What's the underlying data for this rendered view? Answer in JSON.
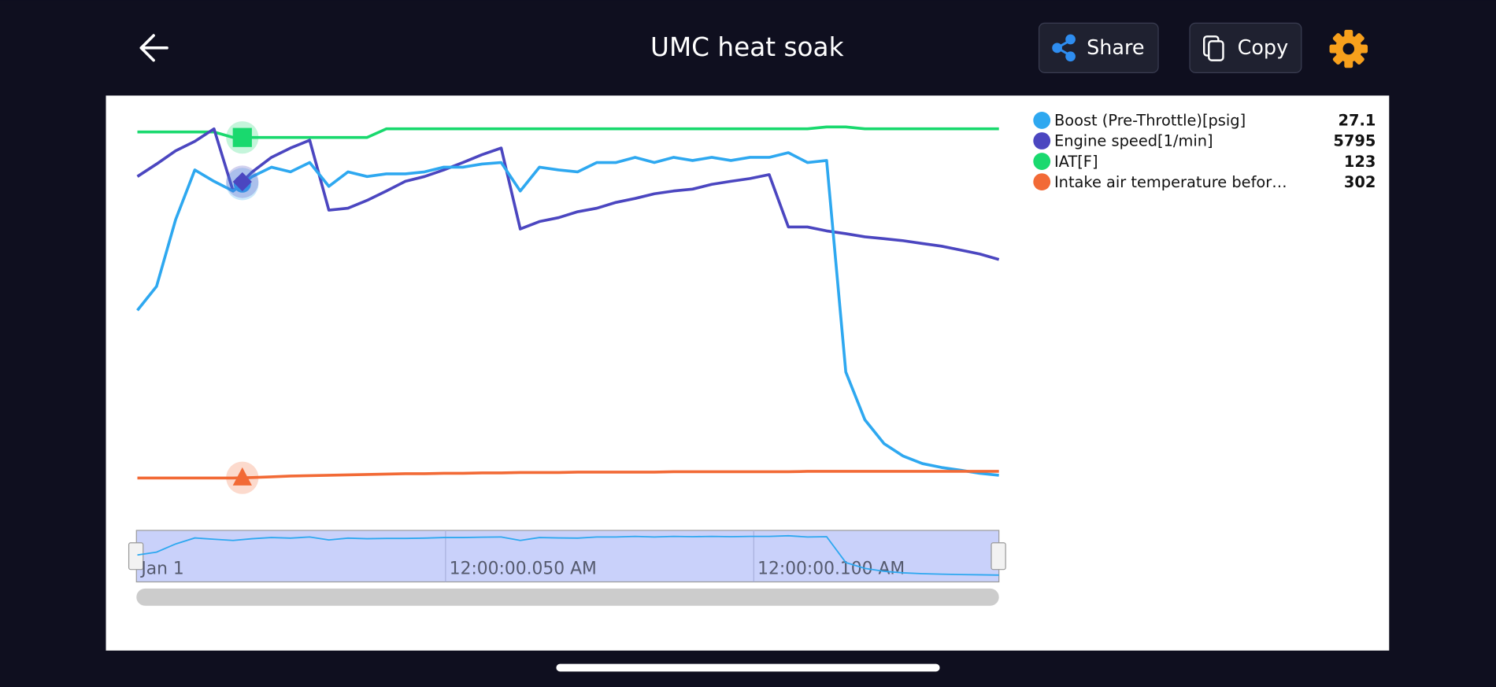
{
  "header": {
    "title": "UMC heat soak",
    "share": "Share",
    "copy": "Copy"
  },
  "chart_data": {
    "type": "line",
    "ylim": [
      0,
      100
    ],
    "series": [
      {
        "name": "Boost (Pre-Throttle)[psig]",
        "color": "#2ea8f0",
        "readout": 27.1,
        "values": [
          52.4,
          58.5,
          75.6,
          88.3,
          85.4,
          82.9,
          86.6,
          89.0,
          87.8,
          90.2,
          84.1,
          87.8,
          86.6,
          87.3,
          87.3,
          87.8,
          89.0,
          89.0,
          89.8,
          90.2,
          82.9,
          89.0,
          88.3,
          87.8,
          90.2,
          90.2,
          91.5,
          90.2,
          91.5,
          90.7,
          91.5,
          90.7,
          91.5,
          91.5,
          92.7,
          90.2,
          90.7,
          36.6,
          24.4,
          18.3,
          15.1,
          13.2,
          12.2,
          11.5,
          10.7,
          10.2
        ]
      },
      {
        "name": "Engine speed[1/min]",
        "color": "#4b46c0",
        "readout": 5795,
        "values": [
          86.6,
          89.8,
          93.2,
          95.6,
          98.8,
          82.9,
          87.8,
          91.5,
          93.9,
          95.9,
          78.0,
          78.5,
          80.5,
          82.9,
          85.4,
          86.6,
          88.3,
          90.2,
          92.2,
          93.9,
          73.2,
          75.1,
          76.1,
          77.6,
          78.5,
          80.0,
          81.0,
          82.2,
          82.9,
          83.4,
          84.6,
          85.4,
          86.1,
          87.1,
          73.7,
          73.7,
          72.7,
          72.0,
          71.2,
          70.7,
          70.2,
          69.5,
          68.8,
          67.8,
          66.8,
          65.4
        ]
      },
      {
        "name": "IAT[F]",
        "color": "#19d96e",
        "readout": 123,
        "values": [
          98.0,
          98.0,
          98.0,
          98.0,
          98.0,
          96.6,
          96.6,
          96.6,
          96.6,
          96.6,
          96.6,
          96.6,
          96.6,
          98.8,
          98.8,
          98.8,
          98.8,
          98.8,
          98.8,
          98.8,
          98.8,
          98.8,
          98.8,
          98.8,
          98.8,
          98.8,
          98.8,
          98.8,
          98.8,
          98.8,
          98.8,
          98.8,
          98.8,
          98.8,
          98.8,
          98.8,
          99.3,
          99.3,
          98.8,
          98.8,
          98.8,
          98.8,
          98.8,
          98.8,
          98.8,
          98.8
        ]
      },
      {
        "name": "Intake air temperature befor…",
        "color": "#f26a36",
        "readout": 302,
        "values": [
          9.5,
          9.5,
          9.5,
          9.5,
          9.5,
          9.5,
          9.6,
          9.8,
          10.0,
          10.1,
          10.2,
          10.3,
          10.4,
          10.5,
          10.6,
          10.6,
          10.7,
          10.7,
          10.8,
          10.8,
          10.9,
          10.9,
          10.9,
          11.0,
          11.0,
          11.0,
          11.0,
          11.0,
          11.1,
          11.1,
          11.1,
          11.1,
          11.1,
          11.1,
          11.1,
          11.2,
          11.2,
          11.2,
          11.2,
          11.2,
          11.2,
          11.2,
          11.2,
          11.2,
          11.2,
          11.2
        ]
      }
    ],
    "navigator": {
      "labels": [
        "Jan 1",
        "12:00:00.050 AM",
        "12:00:00.100 AM"
      ]
    }
  }
}
